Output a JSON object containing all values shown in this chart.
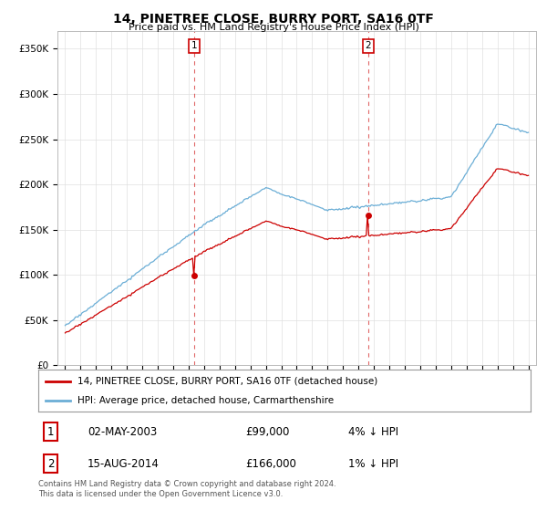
{
  "title": "14, PINETREE CLOSE, BURRY PORT, SA16 0TF",
  "subtitle": "Price paid vs. HM Land Registry's House Price Index (HPI)",
  "legend_line1": "14, PINETREE CLOSE, BURRY PORT, SA16 0TF (detached house)",
  "legend_line2": "HPI: Average price, detached house, Carmarthenshire",
  "footnote": "Contains HM Land Registry data © Crown copyright and database right 2024.\nThis data is licensed under the Open Government Licence v3.0.",
  "transaction1_label": "1",
  "transaction1_date": "02-MAY-2003",
  "transaction1_price": "£99,000",
  "transaction1_hpi": "4% ↓ HPI",
  "transaction2_label": "2",
  "transaction2_date": "15-AUG-2014",
  "transaction2_price": "£166,000",
  "transaction2_hpi": "1% ↓ HPI",
  "sale1_x": 2003.34,
  "sale1_y": 99000,
  "sale2_x": 2014.62,
  "sale2_y": 166000,
  "vline1_x": 2003.34,
  "vline2_x": 2014.62,
  "ylim_min": 0,
  "ylim_max": 370000,
  "xlim_min": 1994.5,
  "xlim_max": 2025.5,
  "yticks": [
    0,
    50000,
    100000,
    150000,
    200000,
    250000,
    300000,
    350000
  ],
  "ytick_labels": [
    "£0",
    "£50K",
    "£100K",
    "£150K",
    "£200K",
    "£250K",
    "£300K",
    "£350K"
  ],
  "xticks": [
    1995,
    1996,
    1997,
    1998,
    1999,
    2000,
    2001,
    2002,
    2003,
    2004,
    2005,
    2006,
    2007,
    2008,
    2009,
    2010,
    2011,
    2012,
    2013,
    2014,
    2015,
    2016,
    2017,
    2018,
    2019,
    2020,
    2021,
    2022,
    2023,
    2024,
    2025
  ],
  "hpi_color": "#6baed6",
  "price_color": "#cc0000",
  "vline_color": "#cc0000",
  "background_color": "#ffffff",
  "grid_color": "#e0e0e0"
}
